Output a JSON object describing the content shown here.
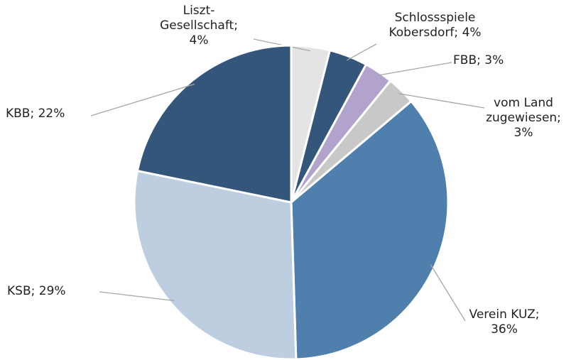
{
  "chart_data": {
    "type": "pie",
    "categories": [
      "Liszt-Gesellschaft;",
      "Schlossspiele Kobersdorf;",
      "FBB;",
      "vom Land zugewiesen;",
      "Verein KUZ;",
      "KSB;",
      "KBB;"
    ],
    "values": [
      4,
      4,
      3,
      3,
      36,
      29,
      22
    ],
    "value_labels": [
      "4%",
      "4%",
      "3%",
      "3%",
      "36%",
      "29%",
      "22%"
    ],
    "colors": [
      "#e4e4e4",
      "#34567a",
      "#b2a3cc",
      "#c8c8c8",
      "#4e7fad",
      "#bdcee1",
      "#34567a"
    ]
  }
}
